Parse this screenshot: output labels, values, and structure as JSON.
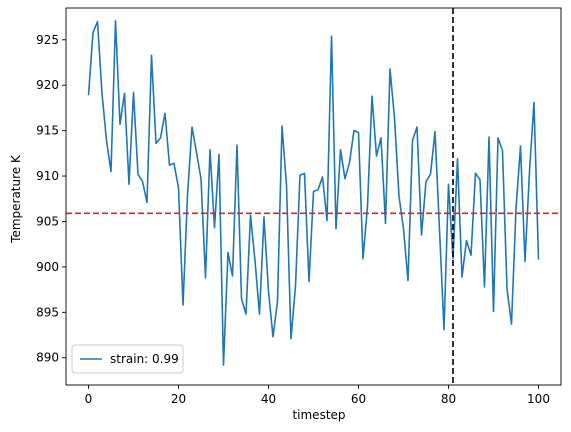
{
  "chart_data": {
    "type": "line",
    "title": "",
    "xlabel": "timestep",
    "ylabel": "Temperature K",
    "xlim": [
      -5,
      105
    ],
    "ylim": [
      887,
      928.5
    ],
    "xticks": [
      0,
      20,
      40,
      60,
      80,
      100
    ],
    "yticks": [
      890,
      895,
      900,
      905,
      910,
      915,
      920,
      925
    ],
    "grid": false,
    "legend_position": "lower-left",
    "series": [
      {
        "name": "strain: 0.99",
        "color": "#1f77b4",
        "x": [
          0,
          1,
          2,
          3,
          4,
          5,
          6,
          7,
          8,
          9,
          10,
          11,
          12,
          13,
          14,
          15,
          16,
          17,
          18,
          19,
          20,
          21,
          22,
          23,
          24,
          25,
          26,
          27,
          28,
          29,
          30,
          31,
          32,
          33,
          34,
          35,
          36,
          37,
          38,
          39,
          40,
          41,
          42,
          43,
          44,
          45,
          46,
          47,
          48,
          49,
          50,
          51,
          52,
          53,
          54,
          55,
          56,
          57,
          58,
          59,
          60,
          61,
          62,
          63,
          64,
          65,
          66,
          67,
          68,
          69,
          70,
          71,
          72,
          73,
          74,
          75,
          76,
          77,
          78,
          79,
          80,
          81,
          82,
          83,
          84,
          85,
          86,
          87,
          88,
          89,
          90,
          91,
          92,
          93,
          94,
          95,
          96,
          97,
          98,
          99,
          100
        ],
        "values": [
          918.9,
          925.8,
          927.0,
          919.1,
          913.9,
          910.5,
          927.1,
          915.7,
          919.1,
          909.1,
          919.2,
          910.2,
          909.4,
          907.1,
          923.3,
          913.6,
          914.2,
          916.9,
          911.2,
          911.4,
          908.7,
          895.8,
          907.9,
          915.4,
          912.6,
          909.7,
          898.8,
          912.9,
          904.3,
          912.4,
          889.2,
          901.6,
          899.0,
          913.4,
          896.5,
          894.8,
          905.7,
          900.7,
          894.8,
          905.5,
          897.3,
          892.3,
          896.2,
          915.5,
          909.0,
          892.1,
          897.9,
          910.1,
          910.3,
          898.4,
          908.3,
          908.5,
          909.9,
          905.1,
          925.4,
          904.2,
          912.9,
          909.7,
          911.5,
          915.0,
          914.8,
          900.9,
          906.7,
          918.8,
          912.2,
          914.2,
          904.8,
          921.8,
          916.4,
          907.8,
          904.2,
          898.5,
          913.9,
          915.4,
          903.5,
          909.4,
          910.2,
          914.9,
          904.1,
          893.1,
          909.1,
          900.9,
          911.9,
          898.9,
          902.9,
          901.3,
          910.3,
          909.6,
          897.8,
          914.3,
          895.1,
          914.2,
          912.8,
          897.6,
          893.7,
          906.4,
          913.3,
          900.6,
          910.5,
          918.1,
          900.8
        ]
      }
    ],
    "reference_lines": [
      {
        "orientation": "horizontal",
        "value": 905.9,
        "color": "#d62728",
        "style": "dashed"
      },
      {
        "orientation": "vertical",
        "value": 81,
        "color": "#000000",
        "style": "dashed"
      }
    ]
  }
}
